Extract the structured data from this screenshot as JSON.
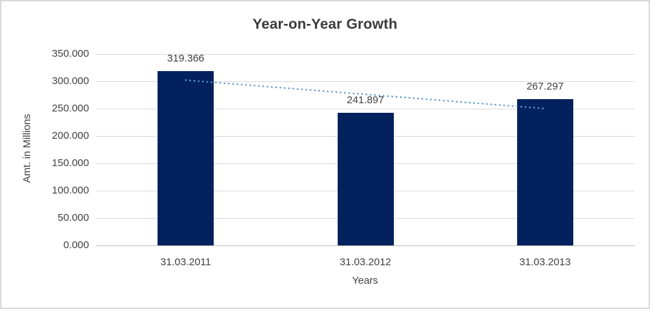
{
  "window": {
    "background": "#ffffff",
    "border_color": "#d9d9d9"
  },
  "chart_data": {
    "type": "bar",
    "title": "Year-on-Year Growth",
    "xlabel": "Years",
    "ylabel": "Amt. in Millions",
    "categories": [
      "31.03.2011",
      "31.03.2012",
      "31.03.2013"
    ],
    "values": [
      319.366,
      241.897,
      267.297
    ],
    "data_labels": [
      "319.366",
      "241.897",
      "267.297"
    ],
    "ylim": [
      0,
      350
    ],
    "yticks": [
      {
        "value": 0,
        "label": "0.000"
      },
      {
        "value": 50,
        "label": "50.000"
      },
      {
        "value": 100,
        "label": "100.000"
      },
      {
        "value": 150,
        "label": "150.000"
      },
      {
        "value": 200,
        "label": "200.000"
      },
      {
        "value": 250,
        "label": "250.000"
      },
      {
        "value": 300,
        "label": "300.000"
      },
      {
        "value": 350,
        "label": "350.000"
      }
    ],
    "grid": true,
    "legend": "none",
    "bar_color": "#03215c",
    "trendline": {
      "type": "linear",
      "style": "dotted",
      "color": "#5b9bd5"
    },
    "text_color": "#404040",
    "grid_color": "#d9d9d9",
    "axis_color": "#bfbfbf"
  }
}
